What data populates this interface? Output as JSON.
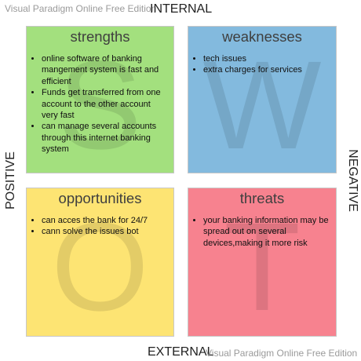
{
  "watermark": "Visual Paradigm Online Free Edition",
  "axes": {
    "top": "INTERNAL",
    "bottom": "EXTERNAL",
    "left": "POSITIVE",
    "right": "NEGATIVE"
  },
  "colors": {
    "strengths": "#a3e07e",
    "weaknesses": "#83bade",
    "opportunities": "#fde473",
    "threats": "#f7828f"
  },
  "quadrants": {
    "strengths": {
      "title": "strengths",
      "letter": "S",
      "items": [
        "online software of banking mangement system is fast and efficient",
        "Funds get transferred from one account to the other account very fast",
        "can manage several accounts through this internet banking system"
      ]
    },
    "weaknesses": {
      "title": "weaknesses",
      "letter": "W",
      "items": [
        "tech issues",
        "extra charges  for services"
      ]
    },
    "opportunities": {
      "title": "opportunities",
      "letter": "O",
      "items": [
        "can acces the bank for 24/7",
        "cann solve the issues  bot"
      ]
    },
    "threats": {
      "title": "threats",
      "letter": "T",
      "items": [
        "your banking information may be spread out on several devices,making it more risk"
      ]
    }
  }
}
